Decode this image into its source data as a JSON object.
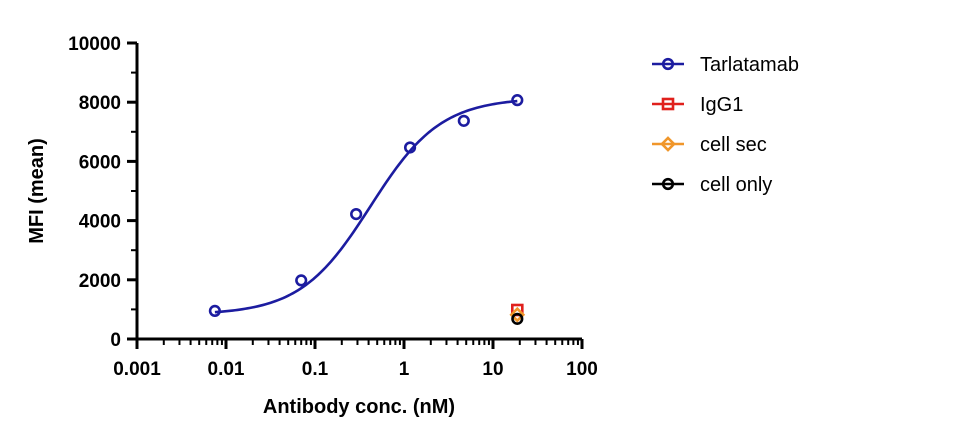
{
  "chart_data": {
    "type": "scatter",
    "title": "",
    "xlabel": "Antibody conc. (nM)",
    "ylabel": "MFI (mean)",
    "x_scale": "log",
    "xlim": [
      0.001,
      100
    ],
    "ylim": [
      0,
      10000
    ],
    "x_ticks": [
      0.001,
      0.01,
      0.1,
      1,
      10,
      100
    ],
    "x_tick_labels": [
      "0.001",
      "0.01",
      "0.1",
      "1",
      "10",
      "100"
    ],
    "y_ticks": [
      0,
      2000,
      4000,
      6000,
      8000,
      10000
    ],
    "y_tick_labels": [
      "0",
      "2000",
      "4000",
      "6000",
      "8000",
      "10000"
    ],
    "grid": false,
    "legend_position": "right",
    "series": [
      {
        "name": "Tarlatamab",
        "marker": "circle",
        "color": "#1c1ca0",
        "fit_curve": true,
        "fit": {
          "bottom": 820,
          "top": 8150,
          "ec50": 0.42,
          "hill": 1.1
        },
        "points": [
          {
            "x": 0.0075,
            "y": 950
          },
          {
            "x": 0.07,
            "y": 1980
          },
          {
            "x": 0.29,
            "y": 4220
          },
          {
            "x": 1.17,
            "y": 6470
          },
          {
            "x": 4.7,
            "y": 7370
          },
          {
            "x": 18.75,
            "y": 8070
          }
        ]
      },
      {
        "name": "IgG1",
        "marker": "square",
        "color": "#e0201c",
        "fit_curve": false,
        "points": [
          {
            "x": 18.75,
            "y": 980
          }
        ]
      },
      {
        "name": "cell sec",
        "marker": "diamond",
        "color": "#f0962a",
        "fit_curve": false,
        "points": [
          {
            "x": 18.75,
            "y": 820
          }
        ]
      },
      {
        "name": "cell only",
        "marker": "circle",
        "color": "#000000",
        "fit_curve": false,
        "points": [
          {
            "x": 18.75,
            "y": 680
          }
        ]
      }
    ]
  }
}
